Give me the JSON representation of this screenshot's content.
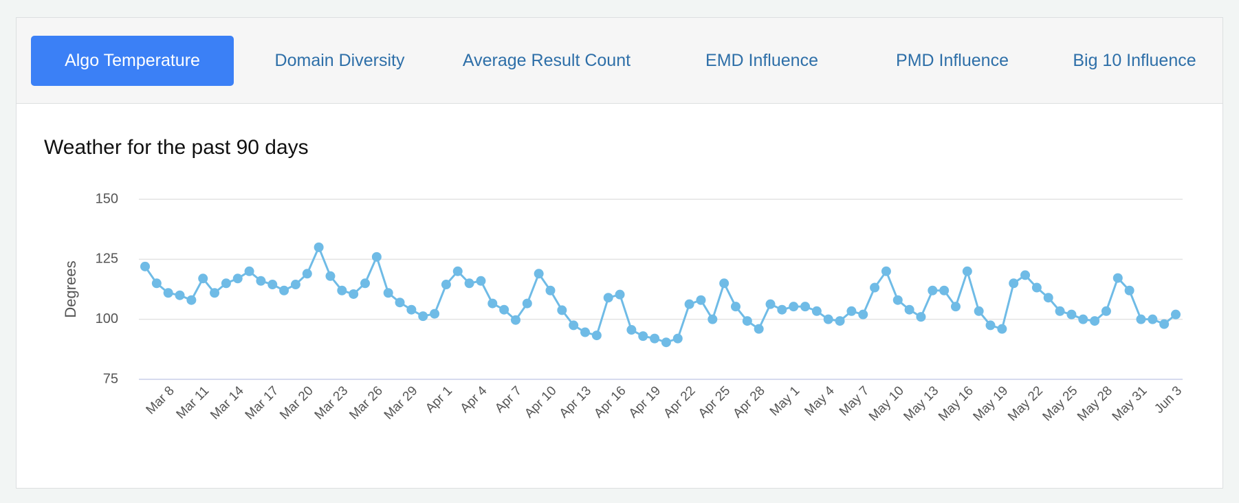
{
  "tabs": [
    "Algo Temperature",
    "Domain Diversity",
    "Average Result Count",
    "EMD Influence",
    "PMD Influence",
    "Big 10 Influence"
  ],
  "chart_data": {
    "type": "line",
    "title": "Weather for the past 90 days",
    "y_label": "Degrees",
    "categories": [
      null,
      null,
      "Mar 8",
      null,
      null,
      "Mar 11",
      null,
      null,
      "Mar 14",
      null,
      null,
      "Mar 17",
      null,
      null,
      "Mar 20",
      null,
      null,
      "Mar 23",
      null,
      null,
      "Mar 26",
      null,
      null,
      "Mar 29",
      null,
      null,
      "Apr 1",
      null,
      null,
      "Apr 4",
      null,
      null,
      "Apr 7",
      null,
      null,
      "Apr 10",
      null,
      null,
      "Apr 13",
      null,
      null,
      "Apr 16",
      null,
      null,
      "Apr 19",
      null,
      null,
      "Apr 22",
      null,
      null,
      "Apr 25",
      null,
      null,
      "Apr 28",
      null,
      null,
      "May 1",
      null,
      null,
      "May 4",
      null,
      null,
      "May 7",
      null,
      null,
      "May 10",
      null,
      null,
      "May 13",
      null,
      null,
      "May 16",
      null,
      null,
      "May 19",
      null,
      null,
      "May 22",
      null,
      null,
      "May 25",
      null,
      null,
      "May 28",
      null,
      null,
      "May 31",
      null,
      null,
      "Jun 3"
    ],
    "series": [
      {
        "name": "Degrees",
        "color": "#6fbbe6",
        "values": [
          122,
          115,
          111,
          110,
          108,
          117,
          111,
          115,
          117,
          120,
          116,
          114.5,
          112,
          114.5,
          119,
          130,
          118,
          112,
          110.5,
          115,
          126,
          111,
          107,
          104,
          101.3,
          102.3,
          114.5,
          120,
          115,
          116,
          106.6,
          104,
          99.7,
          106.6,
          119,
          112,
          103.8,
          97.5,
          94.6,
          93.3,
          109,
          110.3,
          95.6,
          93,
          92,
          90.4,
          92,
          106.3,
          108,
          100,
          115,
          105.3,
          99.3,
          96,
          106.3,
          104,
          105.3,
          105.3,
          103.4,
          100,
          99.3,
          103.4,
          102,
          113.2,
          120,
          108,
          104,
          101,
          112,
          112,
          105.3,
          120,
          103.4,
          97.5,
          96,
          115,
          118.4,
          113.2,
          109,
          103.4,
          102,
          100,
          99.3,
          103.4,
          117.2,
          112,
          100,
          100,
          98,
          102
        ]
      }
    ],
    "ylim": [
      75,
      150
    ],
    "yticks": [
      75,
      100,
      125,
      150
    ],
    "grid": true
  }
}
